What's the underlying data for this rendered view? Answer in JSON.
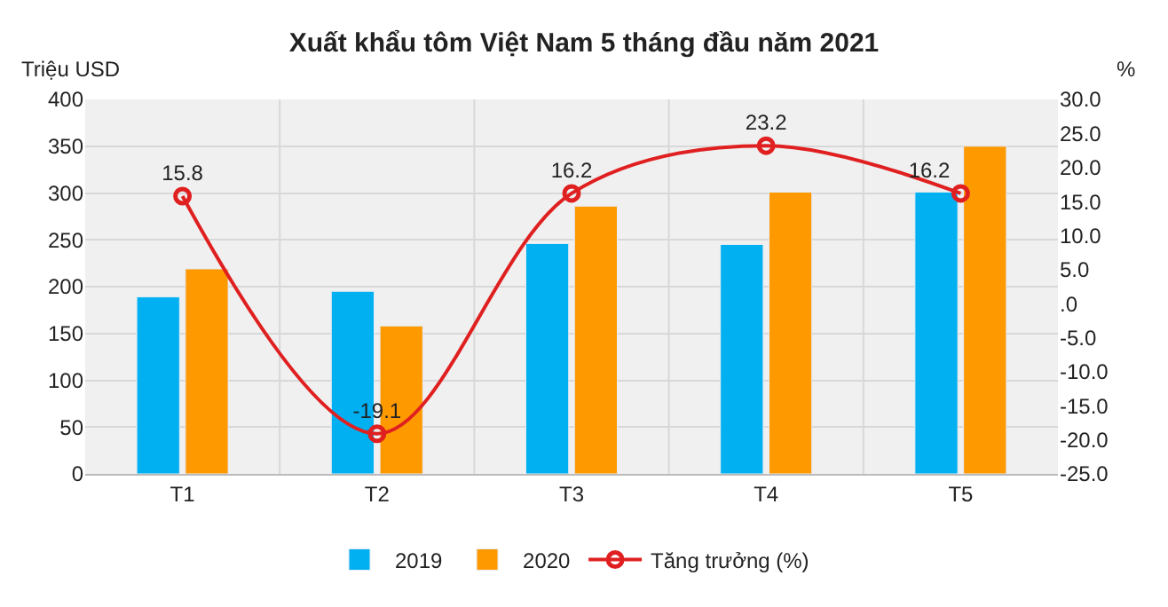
{
  "chart_data": {
    "type": "bar",
    "title": "Xuất khẩu tôm Việt Nam 5 tháng đầu năm 2021",
    "ylabel": "Triệu USD",
    "y2label": "%",
    "categories": [
      "T1",
      "T2",
      "T3",
      "T4",
      "T5"
    ],
    "series": [
      {
        "name": "2019",
        "color": "#00b0f0",
        "values": [
          189,
          195,
          246,
          245,
          301
        ]
      },
      {
        "name": "2020",
        "color": "#ff9900",
        "values": [
          219,
          158,
          286,
          301,
          350
        ]
      },
      {
        "name": "Tăng trưởng (%)",
        "type": "line",
        "axis": "y2",
        "color": "#e02020",
        "marker": "circle",
        "values": [
          15.8,
          -19.1,
          16.2,
          23.2,
          16.2
        ],
        "value_labels": [
          "15.8",
          "-19.1",
          "16.2",
          "23.2",
          "16.2"
        ]
      }
    ],
    "ylim": [
      0,
      400
    ],
    "yticks": [
      0,
      50,
      100,
      150,
      200,
      250,
      300,
      350,
      400
    ],
    "y2lim": [
      -25,
      30
    ],
    "y2ticks": [
      {
        "value": 30,
        "label": "30.0"
      },
      {
        "value": 25,
        "label": "25.0"
      },
      {
        "value": 20,
        "label": "20.0"
      },
      {
        "value": 15,
        "label": "15.0"
      },
      {
        "value": 10,
        "label": "10.0"
      },
      {
        "value": 5,
        "label": "5.0"
      },
      {
        "value": 0,
        "label": ".0"
      },
      {
        "value": -5,
        "label": "-5.0"
      },
      {
        "value": -10,
        "label": "-10.0"
      },
      {
        "value": -15,
        "label": "-15.0"
      },
      {
        "value": -20,
        "label": "-20.0"
      },
      {
        "value": -25,
        "label": "-25.0"
      }
    ],
    "grid": true,
    "legend": "bottom"
  }
}
